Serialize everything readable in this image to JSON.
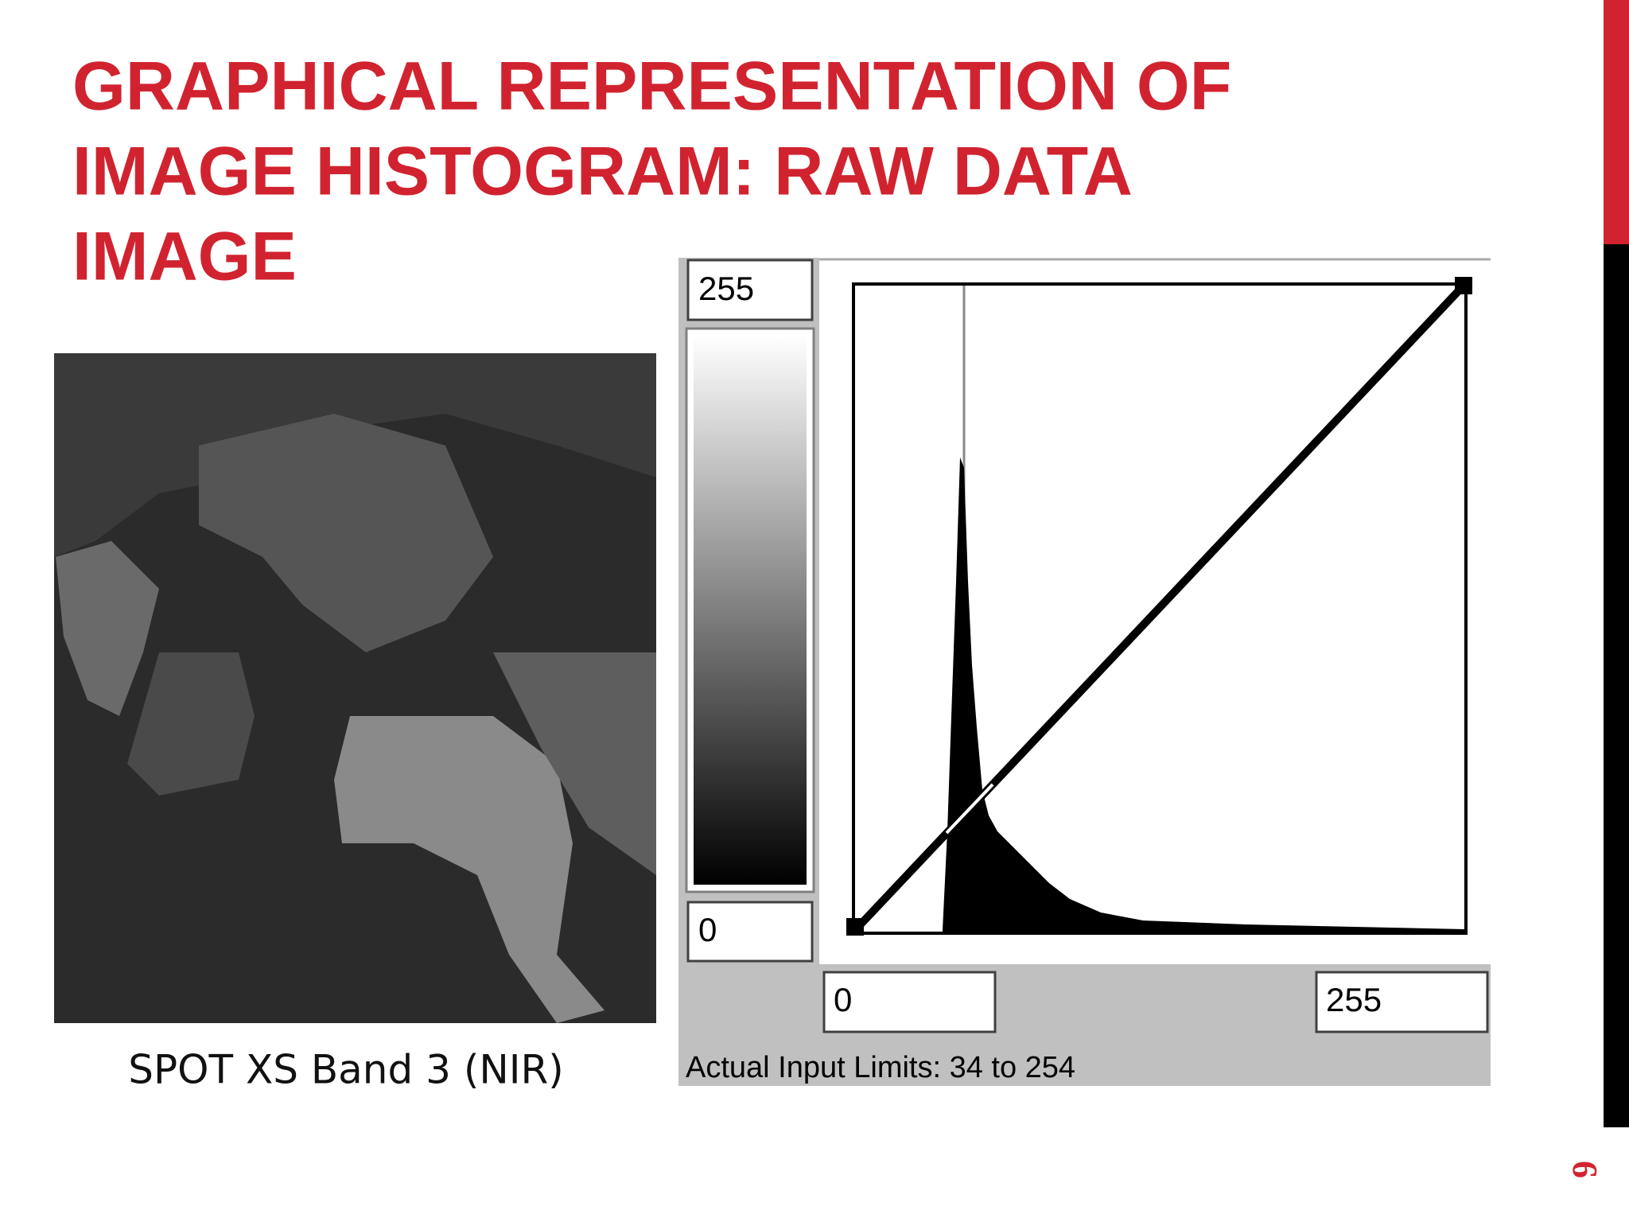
{
  "slide": {
    "title_lines": [
      "GRAPHICAL REPRESENTATION OF",
      "IMAGE HISTOGRAM: RAW DATA",
      "IMAGE"
    ],
    "caption": "SPOT XS Band 3 (NIR)",
    "page_number": "6"
  },
  "histogram_panel": {
    "output_max": "255",
    "output_min": "0",
    "input_min": "0",
    "input_max": "255",
    "status": "Actual Input Limits: 34 to 254"
  }
}
